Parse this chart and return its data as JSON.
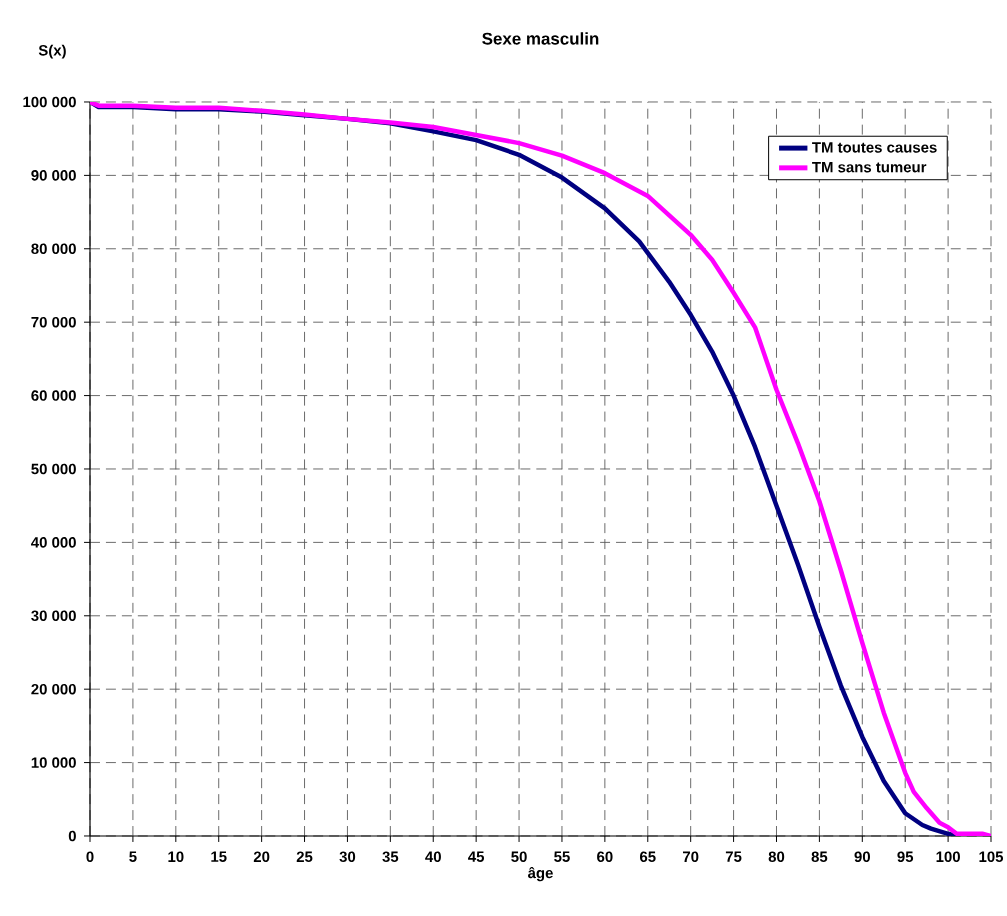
{
  "chart_data": {
    "type": "line",
    "title": "Sexe masculin",
    "xlabel": "âge",
    "ylabel": "S(x)",
    "xlim": [
      0,
      105
    ],
    "ylim": [
      0,
      100000
    ],
    "xticks": [
      0,
      5,
      10,
      15,
      20,
      25,
      30,
      35,
      40,
      45,
      50,
      55,
      60,
      65,
      70,
      75,
      80,
      85,
      90,
      95,
      100,
      105
    ],
    "yticks": [
      {
        "value": 0,
        "label": "0"
      },
      {
        "value": 10000,
        "label": "10 000"
      },
      {
        "value": 20000,
        "label": "20 000"
      },
      {
        "value": 30000,
        "label": "30 000"
      },
      {
        "value": 40000,
        "label": "40 000"
      },
      {
        "value": 50000,
        "label": "50 000"
      },
      {
        "value": 60000,
        "label": "60 000"
      },
      {
        "value": 70000,
        "label": "70 000"
      },
      {
        "value": 80000,
        "label": "80 000"
      },
      {
        "value": 90000,
        "label": "90 000"
      },
      {
        "value": 100000,
        "label": "100 000"
      }
    ],
    "grid": true,
    "legend": "top right",
    "marker": "none",
    "line_style": "solid",
    "series": [
      {
        "name": "TM toutes causes",
        "color": "#000080",
        "x": [
          0,
          1,
          5,
          10,
          15,
          20,
          25,
          30,
          35,
          40,
          45,
          50,
          55,
          60,
          64,
          67.5,
          70,
          72.5,
          75,
          77.5,
          80,
          82.5,
          85,
          87.5,
          90,
          92.5,
          95,
          97,
          98,
          100,
          101
        ],
        "values": [
          100000,
          99300,
          99300,
          99000,
          99000,
          98700,
          98200,
          97700,
          97100,
          96000,
          94800,
          92800,
          89700,
          85500,
          81000,
          75500,
          71000,
          66000,
          60000,
          53000,
          45000,
          37000,
          28500,
          20500,
          13500,
          7500,
          3100,
          1500,
          1000,
          300,
          0
        ]
      },
      {
        "name": "TM sans tumeur",
        "color": "#ff00ff",
        "x": [
          0,
          1,
          5,
          10,
          15,
          20,
          25,
          30,
          35,
          40,
          45,
          50,
          55,
          60,
          65,
          70,
          72.5,
          75,
          77.5,
          80,
          82.5,
          85,
          87.5,
          90,
          92.5,
          95,
          96,
          97.5,
          99,
          100,
          101,
          104,
          105
        ],
        "values": [
          100000,
          99500,
          99500,
          99200,
          99200,
          98800,
          98300,
          97700,
          97200,
          96600,
          95500,
          94400,
          92700,
          90300,
          87200,
          81900,
          78500,
          74000,
          69300,
          60800,
          53500,
          45600,
          36200,
          26300,
          16800,
          8600,
          6000,
          3800,
          1800,
          1200,
          300,
          300,
          0
        ]
      }
    ]
  }
}
